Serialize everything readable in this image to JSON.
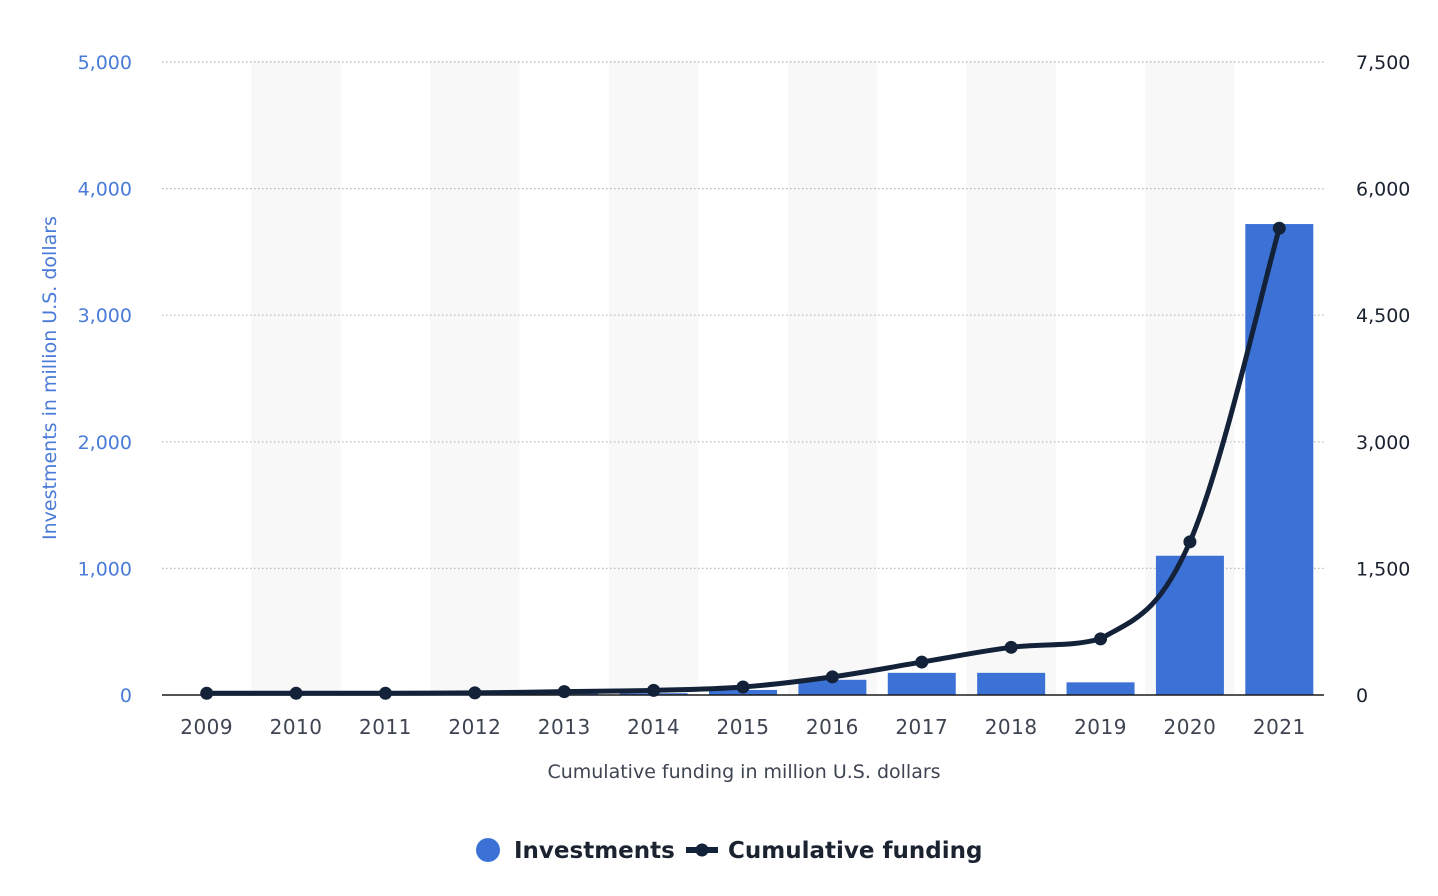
{
  "chart_data": {
    "type": "bar+line",
    "categories": [
      "2009",
      "2010",
      "2011",
      "2012",
      "2013",
      "2014",
      "2015",
      "2016",
      "2017",
      "2018",
      "2019",
      "2020",
      "2021"
    ],
    "series": [
      {
        "name": "Investments",
        "type": "bar",
        "axis": "left",
        "color": "#3c72d6",
        "values": [
          3,
          4,
          3,
          6,
          14,
          14,
          40,
          120,
          175,
          175,
          100,
          1100,
          3720
        ]
      },
      {
        "name": "Cumulative funding",
        "type": "line",
        "axis": "right",
        "color": "#132238",
        "values": [
          20,
          20,
          20,
          25,
          40,
          55,
          95,
          215,
          390,
          565,
          665,
          1815,
          5530
        ]
      }
    ],
    "ylabel": "Investments in million U.S. dollars",
    "xlabel": "Cumulative funding in million U.S. dollars",
    "ylim_left": [
      0,
      5000
    ],
    "ylim_right": [
      0,
      7500
    ],
    "yticks_left": [
      "0",
      "1,000",
      "2,000",
      "3,000",
      "4,000",
      "5,000"
    ],
    "yticks_right": [
      "0",
      "1,500",
      "3,000",
      "4,500",
      "6,000",
      "7,500"
    ],
    "grid": true,
    "legend_position": "bottom-center",
    "colors": {
      "left_axis": "#4a7bd8",
      "bar": "#3c72d6",
      "line": "#132238",
      "band": "#f8f8f8",
      "grid": "#b8b8b8"
    }
  }
}
